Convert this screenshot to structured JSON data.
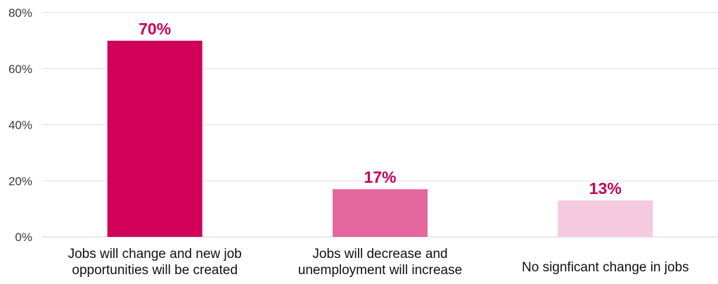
{
  "chart_data": {
    "type": "bar",
    "categories": [
      [
        "Jobs will change and new job",
        "opportunities will be created"
      ],
      [
        "Jobs will decrease and",
        "unemployment will increase"
      ],
      [
        "No signficant change in jobs"
      ]
    ],
    "values": [
      70,
      17,
      13
    ],
    "data_labels": [
      "70%",
      "17%",
      "13%"
    ],
    "bar_colors": [
      "#d10059",
      "#e5679e",
      "#f5cadf"
    ],
    "label_color": "#c7005a",
    "ylim": [
      0,
      80
    ],
    "yticks": [
      0,
      20,
      40,
      60,
      80
    ],
    "ytick_labels": [
      "0%",
      "20%",
      "40%",
      "60%",
      "80%"
    ],
    "grid": true,
    "title": "",
    "xlabel": "",
    "ylabel": ""
  }
}
